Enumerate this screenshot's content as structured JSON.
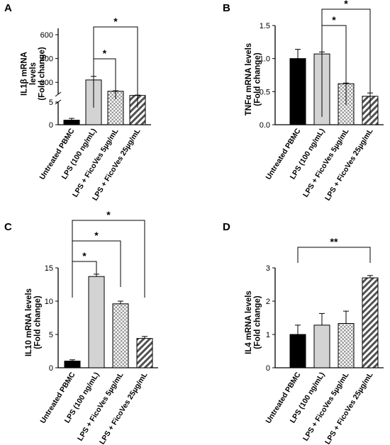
{
  "chart_data": [
    {
      "panel": "A",
      "type": "bar",
      "ylabel": [
        "IL1β mRNA",
        "levels",
        "(Fold change)"
      ],
      "categories": [
        "Untreated PBMC",
        "LPS (100 ng/mL)",
        "LPS + FicoVes 5µg/mL",
        "LPS + FicoVes 25µg/mL"
      ],
      "values": [
        1.0,
        220,
        125,
        90
      ],
      "errors": [
        0.4,
        30,
        4,
        3
      ],
      "y_axis": {
        "broken": true,
        "lower_ticks": [
          "0",
          "5"
        ],
        "upper_ticks": [
          "200",
          "400",
          "600"
        ]
      },
      "fills": [
        "black",
        "#d3d3d3",
        "checker",
        "hatch"
      ],
      "significance": [
        {
          "from": 1,
          "to": 2,
          "label": "*"
        },
        {
          "from": 1,
          "to": 3,
          "label": "*"
        }
      ]
    },
    {
      "panel": "B",
      "type": "bar",
      "ylabel": [
        "TNFα mRNA levels",
        "(Fold change)"
      ],
      "categories": [
        "Untreated PBMC",
        "LPS (100 ng/mL)",
        "LPS + FicoVes 5µg/mL",
        "LPS + FicoVes 25µg/mL"
      ],
      "values": [
        1.0,
        1.07,
        0.62,
        0.43
      ],
      "errors": [
        0.14,
        0.03,
        0.01,
        0.05
      ],
      "ylim": [
        0,
        1.5
      ],
      "yticks": [
        "0.0",
        "0.5",
        "1.0",
        "1.5"
      ],
      "fills": [
        "black",
        "#d3d3d3",
        "checker",
        "hatch"
      ],
      "significance": [
        {
          "from": 1,
          "to": 2,
          "label": "*"
        },
        {
          "from": 1,
          "to": 3,
          "label": "*"
        }
      ]
    },
    {
      "panel": "C",
      "type": "bar",
      "ylabel": [
        "IL10 mRNA levels",
        "(Fold change)"
      ],
      "categories": [
        "Untreated PBMC",
        "LPS (100 ng/mL)",
        "LPS + FicoVes 5µg/mL",
        "LPS + FicoVes 25µg/mL"
      ],
      "values": [
        1.0,
        13.7,
        9.6,
        4.4
      ],
      "errors": [
        0.2,
        0.35,
        0.4,
        0.3
      ],
      "ylim": [
        0,
        15
      ],
      "yticks": [
        "0",
        "5",
        "10",
        "15"
      ],
      "fills": [
        "black",
        "#d3d3d3",
        "checker",
        "hatch"
      ],
      "significance": [
        {
          "from": 0,
          "to": 1,
          "label": "*"
        },
        {
          "from": 0,
          "to": 2,
          "label": "*"
        },
        {
          "from": 0,
          "to": 3,
          "label": "*"
        }
      ]
    },
    {
      "panel": "D",
      "type": "bar",
      "ylabel": [
        "IL4 mRNA levels",
        "(Fold change)"
      ],
      "categories": [
        "Untreated PBMC",
        "LPS (100 ng/mL)",
        "LPS + FicoVes 5µg/mL",
        "LPS + FicoVes 25µg/mL"
      ],
      "values": [
        1.0,
        1.28,
        1.33,
        2.7
      ],
      "errors": [
        0.28,
        0.35,
        0.37,
        0.07
      ],
      "ylim": [
        0,
        3
      ],
      "yticks": [
        "0",
        "1",
        "2",
        "3"
      ],
      "fills": [
        "black",
        "#d3d3d3",
        "checker",
        "hatch"
      ],
      "significance": [
        {
          "from": 0,
          "to": 3,
          "label": "**"
        }
      ]
    }
  ]
}
